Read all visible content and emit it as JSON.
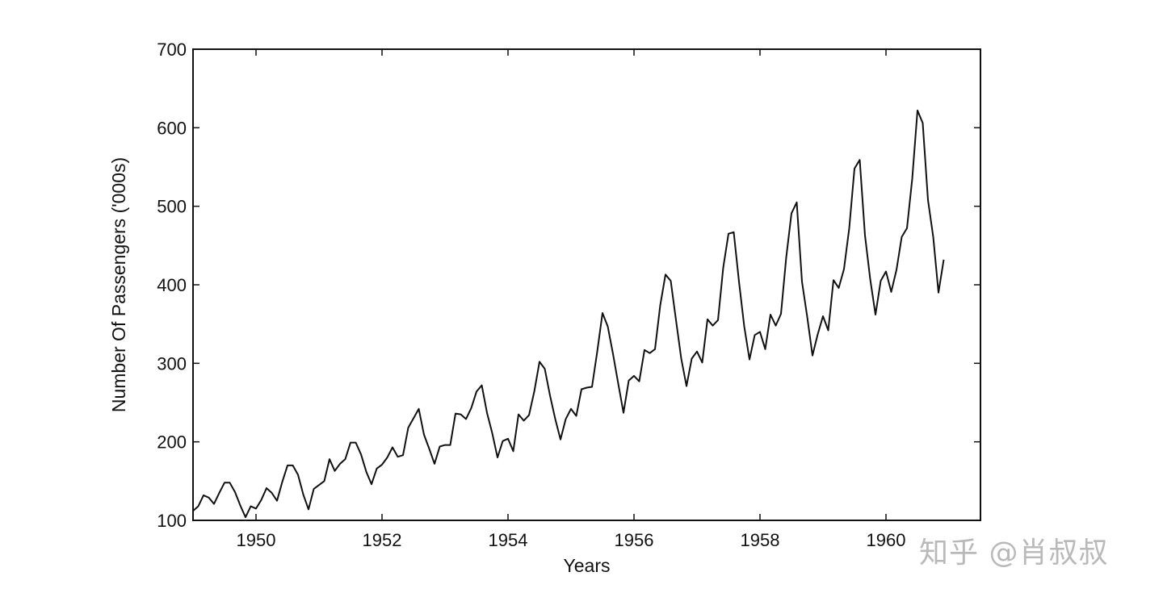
{
  "chart_data": {
    "type": "line",
    "title": "",
    "xlabel": "Years",
    "ylabel": "Number Of Passengers ('000s)",
    "xlim": [
      1949.0,
      1961.5
    ],
    "ylim": [
      100,
      700
    ],
    "xticks": [
      1950,
      1952,
      1954,
      1956,
      1958,
      1960
    ],
    "yticks": [
      100,
      200,
      300,
      400,
      500,
      600,
      700
    ],
    "grid": false,
    "legend": "none",
    "line_color": "#111111",
    "series": [
      {
        "x_start": 1949.0,
        "x_step": 0.08333333,
        "values": [
          112,
          118,
          132,
          129,
          121,
          135,
          148,
          148,
          136,
          119,
          104,
          118,
          115,
          126,
          141,
          135,
          125,
          149,
          170,
          170,
          158,
          133,
          114,
          140,
          145,
          150,
          178,
          163,
          172,
          178,
          199,
          199,
          184,
          162,
          146,
          166,
          171,
          180,
          193,
          181,
          183,
          218,
          230,
          242,
          209,
          191,
          172,
          194,
          196,
          196,
          236,
          235,
          229,
          243,
          264,
          272,
          237,
          211,
          180,
          201,
          204,
          188,
          235,
          227,
          234,
          264,
          302,
          293,
          259,
          229,
          203,
          229,
          242,
          233,
          267,
          269,
          270,
          315,
          364,
          347,
          312,
          274,
          237,
          278,
          284,
          277,
          317,
          313,
          318,
          374,
          413,
          405,
          355,
          306,
          271,
          306,
          315,
          301,
          356,
          348,
          355,
          422,
          465,
          467,
          404,
          347,
          305,
          336,
          340,
          318,
          362,
          348,
          363,
          435,
          491,
          505,
          404,
          359,
          310,
          337,
          360,
          342,
          406,
          396,
          420,
          472,
          548,
          559,
          463,
          407,
          362,
          405,
          417,
          391,
          419,
          461,
          472,
          535,
          622,
          606,
          508,
          461,
          390,
          432
        ]
      }
    ]
  },
  "watermark": "知乎 @肖叔叔"
}
